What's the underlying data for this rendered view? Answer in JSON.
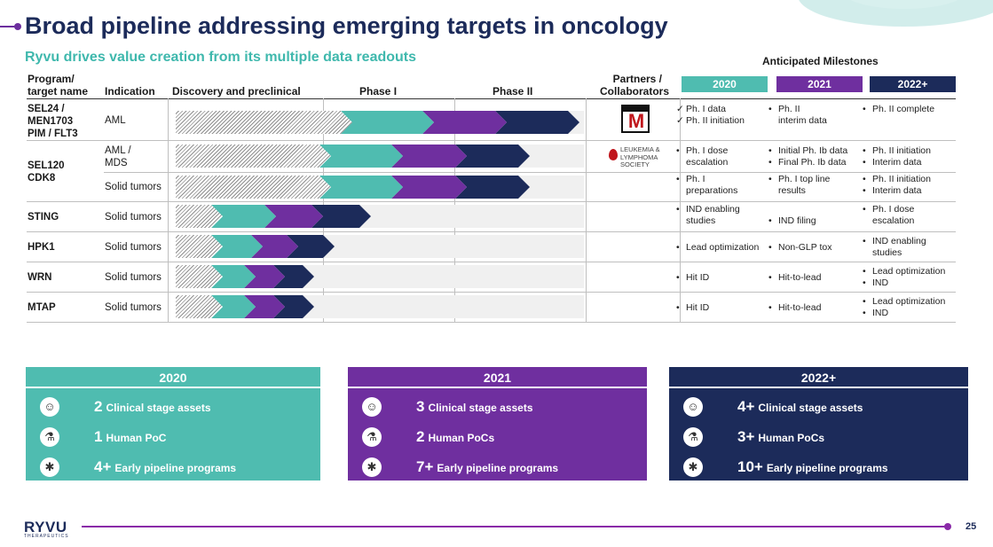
{
  "title": "Broad pipeline addressing emerging targets in oncology",
  "subtitle": "Ryvu drives value creation from its multiple data readouts",
  "milestones_title": "Anticipated Milestones",
  "headers": {
    "program": "Program/",
    "program2": "target name",
    "indication": "Indication",
    "discovery": "Discovery and preclinical",
    "phase1": "Phase I",
    "phase2": "Phase II",
    "partners": "Partners /",
    "partners2": "Collaborators"
  },
  "years": [
    "2020",
    "2021",
    "2022+"
  ],
  "colors": {
    "teal": "#4fbcb0",
    "purple": "#6f2f9f",
    "navy": "#1c2b5a",
    "accent": "#8a2aa8"
  },
  "programs": [
    {
      "name_l1": "SEL24 /",
      "name_l2": "MEN1703",
      "name_l3": "PIM / FLT3",
      "indication": "AML",
      "progress": 0.96
    },
    {
      "name_l1": "SEL120",
      "name_l2": "CDK8",
      "indication_a_l1": "AML /",
      "indication_a_l2": "MDS",
      "progress_a": 0.84,
      "indication_b": "Solid tumors",
      "progress_b": 0.84
    },
    {
      "name": "STING",
      "indication": "Solid tumors",
      "progress": 0.45
    },
    {
      "name": "HPK1",
      "indication": "Solid tumors",
      "progress": 0.36
    },
    {
      "name": "WRN",
      "indication": "Solid tumors",
      "progress": 0.31
    },
    {
      "name": "MTAP",
      "indication": "Solid tumors",
      "progress": 0.31
    }
  ],
  "partners": {
    "menarini": "M",
    "lls_l1": "LEUKEMIA &",
    "lls_l2": "LYMPHOMA",
    "lls_l3": "SOCIETY"
  },
  "milestones": {
    "sel24": {
      "y2020_a": "Ph. I data",
      "y2020_b": "Ph. II initiation",
      "y2021_a": "Ph. II",
      "y2021_b": "interim data",
      "y2022_a": "Ph. II complete"
    },
    "sel120_aml": {
      "y2020_a": "Ph. I dose",
      "y2020_b": "escalation",
      "y2021_a": "Initial Ph. Ib data",
      "y2021_b": "Final Ph. Ib data",
      "y2022_a": "Ph. II initiation",
      "y2022_b": "Interim data"
    },
    "sel120_solid": {
      "y2020_a": "Ph. I",
      "y2020_b": "preparations",
      "y2021_a": "Ph. I top line",
      "y2021_b": "results",
      "y2022_a": "Ph. II initiation",
      "y2022_b": "Interim data"
    },
    "sting": {
      "y2020_a": "IND enabling",
      "y2020_b": "studies",
      "y2021_a": "IND filing",
      "y2022_a": "Ph. I dose",
      "y2022_b": "escalation"
    },
    "hpk1": {
      "y2020_a": "Lead optimization",
      "y2021_a": "Non-GLP tox",
      "y2022_a": "IND enabling",
      "y2022_b": "studies"
    },
    "wrn": {
      "y2020_a": "Hit ID",
      "y2021_a": "Hit-to-lead",
      "y2022_a": "Lead optimization",
      "y2022_b": "IND"
    },
    "mtap": {
      "y2020_a": "Hit ID",
      "y2021_a": "Hit-to-lead",
      "y2022_a": "Lead optimization",
      "y2022_b": "IND"
    }
  },
  "summary": [
    {
      "year": "2020",
      "clinical_num": "2",
      "clinical_lbl": "Clinical stage assets",
      "poc_num": "1",
      "poc_lbl": "Human PoC",
      "early_num": "4+",
      "early_lbl": "Early pipeline programs"
    },
    {
      "year": "2021",
      "clinical_num": "3",
      "clinical_lbl": "Clinical stage assets",
      "poc_num": "2",
      "poc_lbl": "Human PoCs",
      "early_num": "7+",
      "early_lbl": "Early pipeline programs"
    },
    {
      "year": "2022+",
      "clinical_num": "4+",
      "clinical_lbl": "Clinical stage assets",
      "poc_num": "3+",
      "poc_lbl": "Human PoCs",
      "early_num": "10+",
      "early_lbl": "Early pipeline programs"
    }
  ],
  "icons": [
    "scientist-icon",
    "flask-icon",
    "molecule-icon"
  ],
  "footer": {
    "brand": "RYVU",
    "brand_sub": "THERAPEUTICS",
    "page": "25"
  }
}
